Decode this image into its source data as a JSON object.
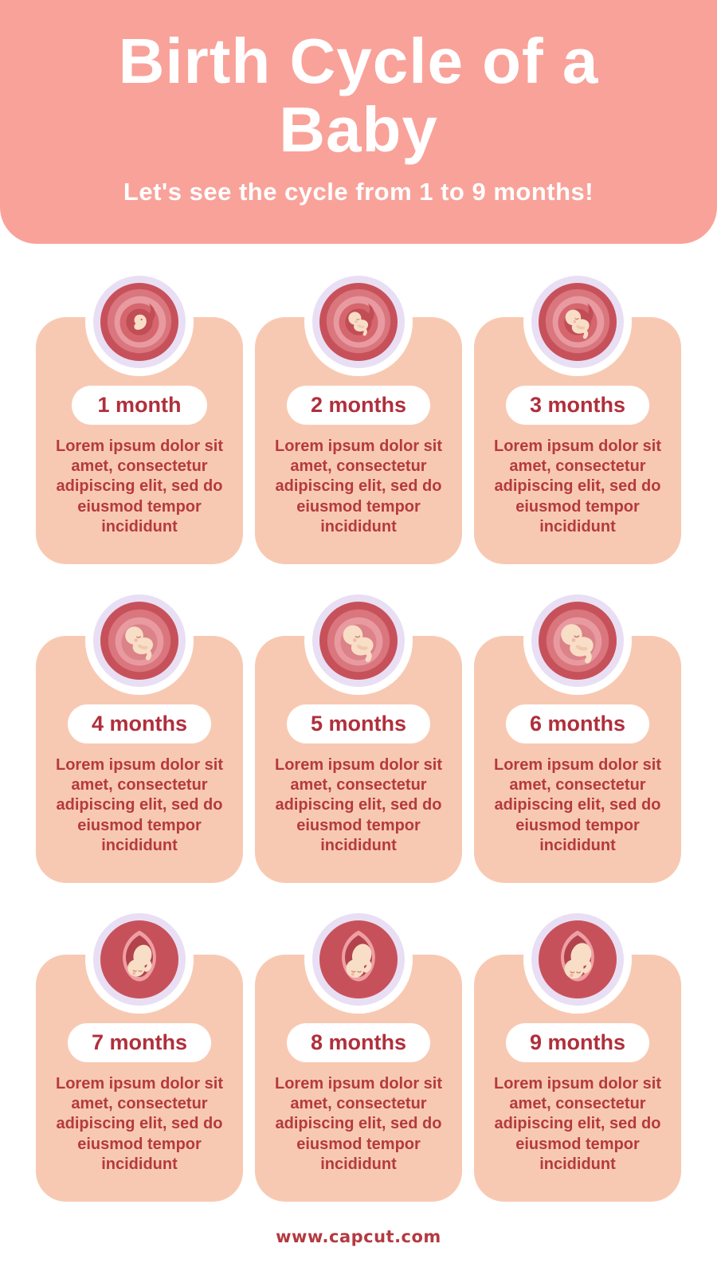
{
  "header": {
    "title": "Birth Cycle of a Baby",
    "subtitle": "Let's see the cycle from 1 to 9 months!"
  },
  "cards": [
    {
      "label": "1 month",
      "body": "Lorem ipsum dolor sit amet, consectetur adipiscing elit, sed do eiusmod tempor incididunt",
      "illustration": "embryo-in-womb-illustration",
      "womb": "swirl",
      "figure": "embryo",
      "scale": 0.9
    },
    {
      "label": "2 months",
      "body": "Lorem ipsum dolor sit amet, consectetur adipiscing elit, sed do eiusmod tempor incididunt",
      "illustration": "early-fetus-in-womb-illustration",
      "womb": "swirl",
      "figure": "fetus",
      "scale": 0.78
    },
    {
      "label": "3 months",
      "body": "Lorem ipsum dolor sit amet, consectetur adipiscing elit, sed do eiusmod tempor incididunt",
      "illustration": "early-fetus-in-womb-illustration",
      "womb": "swirl",
      "figure": "fetus",
      "scale": 0.95
    },
    {
      "label": "4 months",
      "body": "Lorem ipsum dolor sit amet, consectetur adipiscing elit, sed do eiusmod tempor incididunt",
      "illustration": "fetus-in-womb-illustration",
      "womb": "open",
      "figure": "fetus",
      "scale": 1.1
    },
    {
      "label": "5 months",
      "body": "Lorem ipsum dolor sit amet, consectetur adipiscing elit, sed do eiusmod tempor incididunt",
      "illustration": "fetus-in-womb-illustration",
      "womb": "open",
      "figure": "fetus",
      "scale": 1.2
    },
    {
      "label": "6 months",
      "body": "Lorem ipsum dolor sit amet, consectetur adipiscing elit, sed do eiusmod tempor incididunt",
      "illustration": "fetus-in-womb-illustration",
      "womb": "open",
      "figure": "fetus",
      "scale": 1.28
    },
    {
      "label": "7 months",
      "body": "Lorem ipsum dolor sit amet, consectetur adipiscing elit, sed do eiusmod tempor incididunt",
      "illustration": "baby-in-womb-illustration",
      "womb": "teardrop",
      "figure": "baby",
      "scale": 1.0
    },
    {
      "label": "8 months",
      "body": "Lorem ipsum dolor sit amet, consectetur adipiscing elit, sed do eiusmod tempor incididunt",
      "illustration": "baby-in-womb-illustration",
      "womb": "teardrop",
      "figure": "baby",
      "scale": 1.06
    },
    {
      "label": "9 months",
      "body": "Lorem ipsum dolor sit amet, consectetur adipiscing elit, sed do eiusmod tempor incididunt",
      "illustration": "baby-head-down-in-womb-illustration",
      "womb": "teardrop",
      "figure": "baby",
      "scale": 1.12
    }
  ],
  "footer": {
    "website": "www.capcut.com"
  },
  "palette": {
    "header_background": "#F9A29A",
    "card_background": "#F8C9B2",
    "halo_ring": "#E9DFF4",
    "text_red": "#B43A40",
    "pill_text_red": "#B02F3C",
    "womb_red": "#C7515A",
    "skin": "#F8DEC7",
    "white": "#FFFFFF"
  }
}
